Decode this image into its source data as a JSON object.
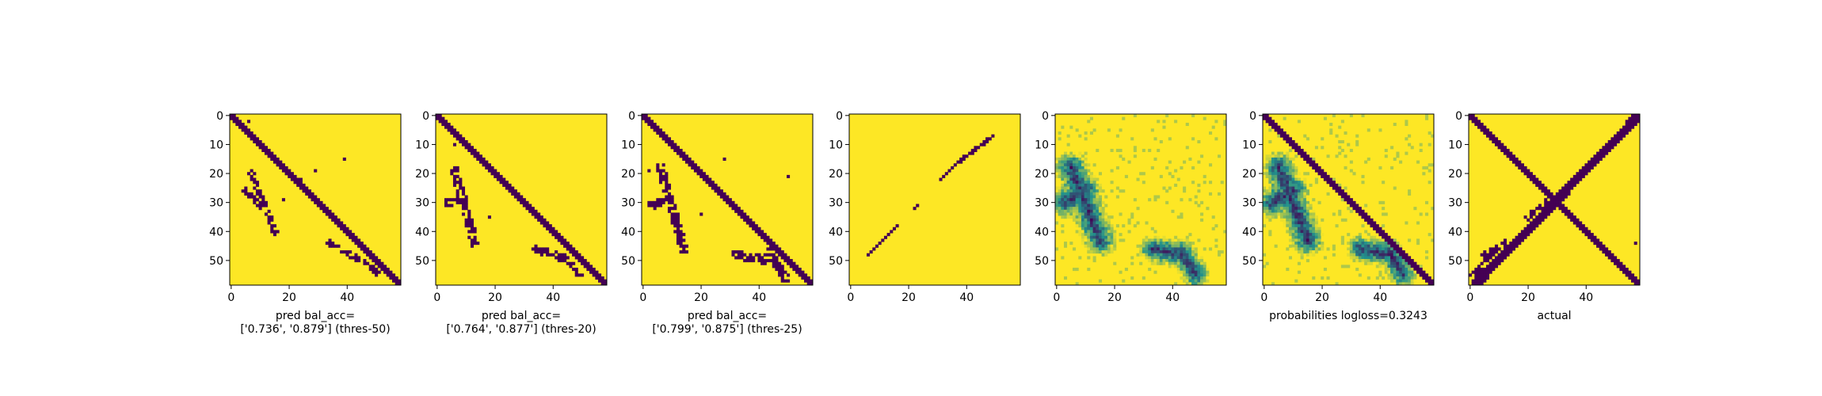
{
  "chart_data": [
    {
      "type": "heatmap",
      "variant": "binary",
      "xlabel_lines": [
        "pred bal_acc=",
        "['0.736', '0.879'] (thres-50)"
      ],
      "xticks": [
        0,
        20,
        40
      ],
      "yticks": [
        0,
        10,
        20,
        30,
        40,
        50
      ],
      "xlim": [
        0,
        58
      ],
      "ylim": [
        0,
        58
      ],
      "background_value": 1,
      "mark_value": 0,
      "diagonal_width": 2,
      "blobs": [
        [
          5,
          26,
          10,
          31,
          2
        ],
        [
          7,
          20,
          15,
          40,
          2
        ],
        [
          34,
          44,
          43,
          49,
          2
        ],
        [
          44,
          49,
          50,
          54,
          2
        ]
      ],
      "specks": [
        [
          6,
          2
        ],
        [
          29,
          19
        ],
        [
          24,
          22
        ],
        [
          18,
          29
        ],
        [
          39,
          15
        ]
      ]
    },
    {
      "type": "heatmap",
      "variant": "binary",
      "xlabel_lines": [
        "pred bal_acc=",
        "['0.764', '0.877'] (thres-20)"
      ],
      "xticks": [
        0,
        20,
        40
      ],
      "yticks": [
        0,
        10,
        20,
        30,
        40,
        50
      ],
      "xlim": [
        0,
        58
      ],
      "ylim": [
        0,
        58
      ],
      "background_value": 1,
      "mark_value": 0,
      "diagonal_width": 3,
      "blobs": [
        [
          4,
          30,
          8,
          28,
          3
        ],
        [
          6,
          19,
          13,
          44,
          3
        ],
        [
          34,
          46,
          43,
          49,
          3
        ],
        [
          44,
          48,
          49,
          55,
          2
        ]
      ],
      "specks": [
        [
          3,
          2
        ],
        [
          6,
          10
        ],
        [
          18,
          35
        ]
      ]
    },
    {
      "type": "heatmap",
      "variant": "binary",
      "xlabel_lines": [
        "pred bal_acc=",
        "['0.799', '0.875'] (thres-25)"
      ],
      "xticks": [
        0,
        20,
        40
      ],
      "yticks": [
        0,
        10,
        20,
        30,
        40,
        50
      ],
      "xlim": [
        0,
        58
      ],
      "ylim": [
        0,
        58
      ],
      "background_value": 1,
      "mark_value": 0,
      "diagonal_width": 3,
      "blobs": [
        [
          3,
          31,
          9,
          29,
          3
        ],
        [
          6,
          18,
          14,
          46,
          3
        ],
        [
          32,
          48,
          43,
          50,
          3
        ],
        [
          43,
          47,
          49,
          56,
          3
        ]
      ],
      "specks": [
        [
          2,
          19
        ],
        [
          5,
          19
        ],
        [
          20,
          34
        ],
        [
          28,
          15
        ],
        [
          50,
          21
        ]
      ]
    },
    {
      "type": "heatmap",
      "variant": "binary",
      "xlabel_lines": [],
      "xticks": [
        0,
        20,
        40
      ],
      "yticks": [
        0,
        10,
        20,
        30,
        40,
        50
      ],
      "xlim": [
        0,
        58
      ],
      "ylim": [
        0,
        58
      ],
      "background_value": 1,
      "mark_value": 0,
      "sparse_diagonal_segments": [
        [
          6,
          48,
          16,
          38
        ],
        [
          22,
          32,
          23,
          31
        ],
        [
          31,
          22,
          35,
          18
        ],
        [
          36,
          17,
          49,
          7
        ]
      ]
    },
    {
      "type": "heatmap",
      "variant": "probability",
      "xlabel_lines": [],
      "xticks": [
        0,
        20,
        40
      ],
      "yticks": [
        0,
        10,
        20,
        30,
        40,
        50
      ],
      "xlim": [
        0,
        58
      ],
      "ylim": [
        0,
        58
      ],
      "diagonal_width": 0,
      "blobs": [
        [
          3,
          30,
          10,
          26,
          6
        ],
        [
          5,
          18,
          15,
          43,
          6
        ],
        [
          33,
          46,
          43,
          48,
          5
        ],
        [
          43,
          47,
          48,
          55,
          5
        ]
      ]
    },
    {
      "type": "heatmap",
      "variant": "probability",
      "xlabel_lines": [
        "probabilities logloss=0.3243"
      ],
      "xticks": [
        0,
        20,
        40
      ],
      "yticks": [
        0,
        10,
        20,
        30,
        40,
        50
      ],
      "xlim": [
        0,
        58
      ],
      "ylim": [
        0,
        58
      ],
      "diagonal_width": 3,
      "blobs": [
        [
          3,
          30,
          10,
          26,
          6
        ],
        [
          5,
          18,
          15,
          43,
          6
        ],
        [
          33,
          46,
          43,
          48,
          5
        ],
        [
          43,
          47,
          48,
          55,
          5
        ]
      ]
    },
    {
      "type": "heatmap",
      "variant": "binary",
      "xlabel_lines": [
        "actual"
      ],
      "xticks": [
        0,
        20,
        40
      ],
      "yticks": [
        0,
        10,
        20,
        30,
        40,
        50
      ],
      "xlim": [
        0,
        58
      ],
      "ylim": [
        0,
        58
      ],
      "background_value": 1,
      "mark_value": 0,
      "diagonal_width": 3,
      "anti_diagonal": [
        [
          2,
          58,
          58,
          0
        ]
      ],
      "anti_diagonal_width": 3,
      "blobs": [
        [
          1,
          55,
          8,
          47,
          2
        ],
        [
          5,
          48,
          12,
          44,
          2
        ],
        [
          20,
          35,
          26,
          30,
          2
        ]
      ],
      "specks": [
        [
          57,
          44
        ],
        [
          54,
          2
        ]
      ]
    }
  ],
  "colors": {
    "low": "#440154",
    "mid": "#21918c",
    "high": "#fde725"
  }
}
